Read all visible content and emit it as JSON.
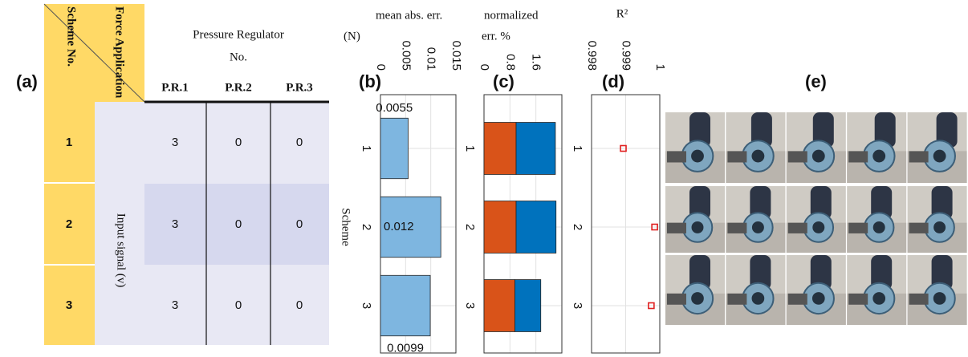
{
  "panel_labels": [
    "(a)",
    "(b)",
    "(c)",
    "(d)",
    "(e)"
  ],
  "table": {
    "corner_top": "Force Application",
    "corner_bottom": "Scheme No.",
    "group_header": [
      "Pressure Regulator",
      "No."
    ],
    "columns": [
      "P.R.1",
      "P.R.2",
      "P.R.3"
    ],
    "row_group_label": "Input signal (v)",
    "rows": [
      {
        "scheme": "1",
        "values": [
          3,
          0,
          0
        ]
      },
      {
        "scheme": "2",
        "values": [
          3,
          0,
          0
        ]
      },
      {
        "scheme": "3",
        "values": [
          3,
          0,
          0
        ]
      }
    ]
  },
  "chart_data": [
    {
      "type": "bar",
      "title": [
        "mean abs. err.",
        "(N)"
      ],
      "ylabel": "Scheme",
      "categories": [
        "1",
        "2",
        "3"
      ],
      "values": [
        0.0055,
        0.012,
        0.0099
      ],
      "color": "#7eb6e0",
      "xlim": [
        0,
        0.015
      ],
      "xticks": [
        0,
        0.005,
        0.01,
        0.015
      ],
      "grid": true
    },
    {
      "type": "stacked_bar",
      "title": [
        "normalized",
        "err. %"
      ],
      "categories": [
        "1",
        "2",
        "3"
      ],
      "series": [
        {
          "color": "#d95319",
          "values": [
            0.99,
            0.99,
            0.95
          ]
        },
        {
          "color": "#0072bd",
          "values": [
            1.21,
            1.23,
            0.8
          ]
        }
      ],
      "xlim": [
        0,
        2.4
      ],
      "xticks": [
        0,
        0.8,
        1.6
      ],
      "grid": true
    },
    {
      "type": "scatter",
      "title": [
        "R²"
      ],
      "categories": [
        "1",
        "2",
        "3"
      ],
      "values": [
        0.99893,
        0.99985,
        0.99975
      ],
      "color": "#e02020",
      "xlim": [
        0.998,
        1
      ],
      "xticks": [
        0.998,
        0.999,
        1
      ],
      "grid": true
    }
  ]
}
